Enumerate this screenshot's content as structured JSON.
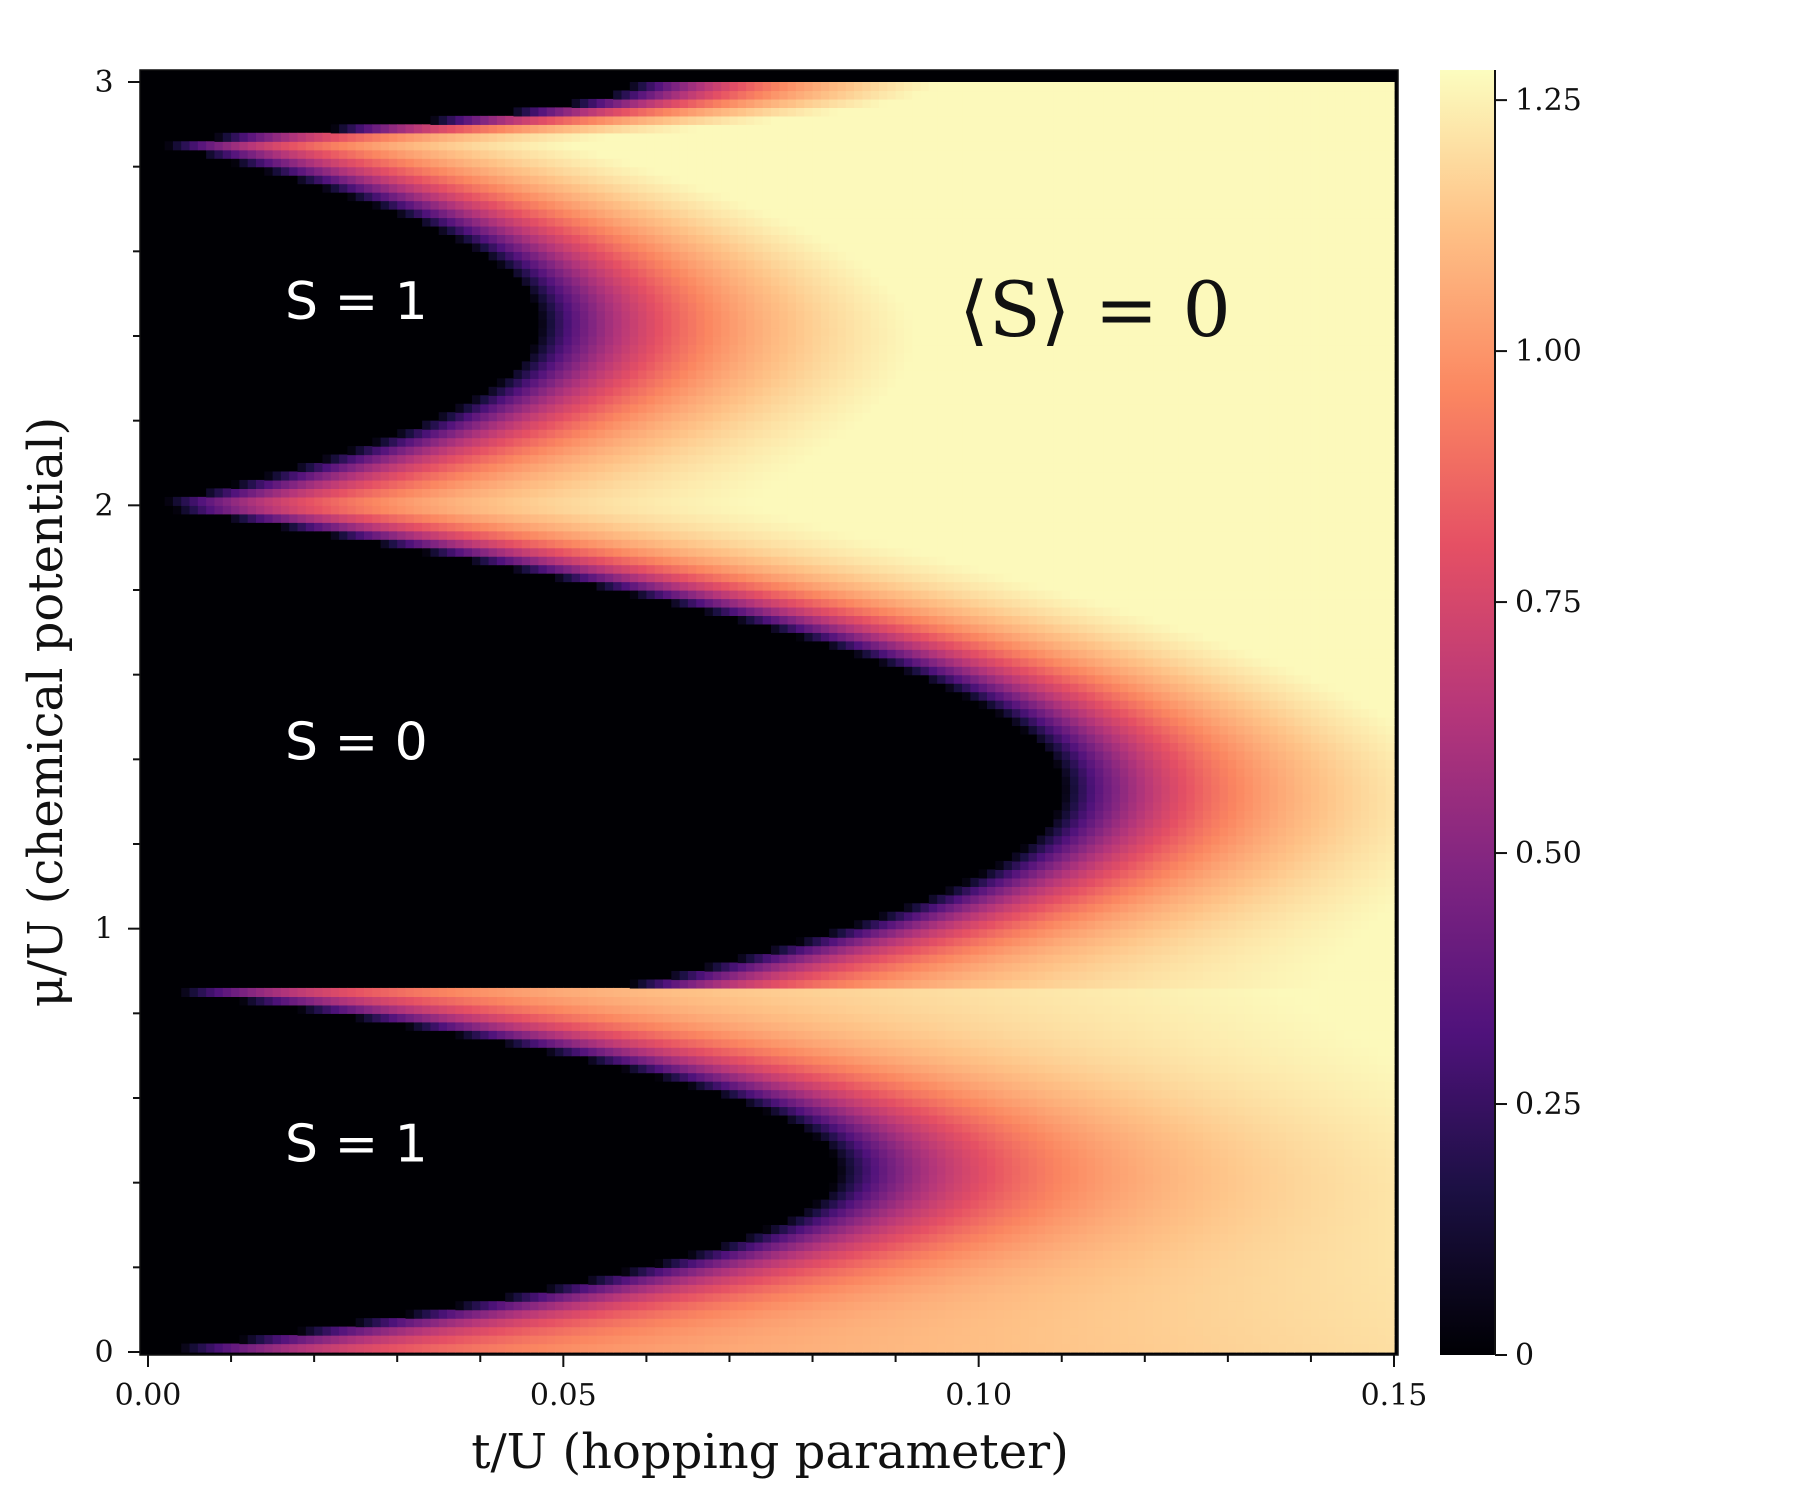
{
  "chart_data": {
    "type": "heatmap",
    "title": "",
    "xlabel": "t/U (hopping parameter)",
    "ylabel": "μ/U (chemical potential)",
    "xlim": [
      0.0,
      0.15
    ],
    "ylim": [
      0,
      3
    ],
    "x_ticks": [
      {
        "value": 0.0,
        "label": "0.00"
      },
      {
        "value": 0.05,
        "label": "0.05"
      },
      {
        "value": 0.1,
        "label": "0.10"
      },
      {
        "value": 0.15,
        "label": "0.15"
      }
    ],
    "y_ticks": [
      {
        "value": 0,
        "label": "0"
      },
      {
        "value": 1,
        "label": "1"
      },
      {
        "value": 2,
        "label": "2"
      },
      {
        "value": 3,
        "label": "3"
      }
    ],
    "colorbar": {
      "colormap": "magma",
      "range": [
        0,
        1.28
      ],
      "ticks": [
        {
          "value": 0,
          "label": "0"
        },
        {
          "value": 0.25,
          "label": "0.25"
        },
        {
          "value": 0.5,
          "label": "0.50"
        },
        {
          "value": 0.75,
          "label": "0.75"
        },
        {
          "value": 1.0,
          "label": "1.00"
        },
        {
          "value": 1.25,
          "label": "1.25"
        }
      ]
    },
    "annotations": [
      {
        "text": "S = 1",
        "t": 0.0165,
        "mu": 2.44
      },
      {
        "text": "S = 0",
        "t": 0.0165,
        "mu": 1.4
      },
      {
        "text": "S = 1",
        "t": 0.0165,
        "mu": 0.45
      },
      {
        "text": "⟨S⟩ = 0",
        "t": 0.114,
        "mu": 2.4
      }
    ],
    "mott_lobes": [
      {
        "mu_min": 0.0,
        "mu_max": 0.86,
        "mu_center": 0.43,
        "t_tip": 0.083
      },
      {
        "mu_min": 0.86,
        "mu_max": 2.0,
        "mu_center": 1.33,
        "t_tip": 0.11
      },
      {
        "mu_min": 2.0,
        "mu_max": 2.86,
        "mu_center": 2.43,
        "t_tip": 0.047
      },
      {
        "mu_min": 2.86,
        "mu_max": 3.0,
        "mu_center": 3.0,
        "t_tip": 0.058
      }
    ],
    "grid_resolution": {
      "nx": 150,
      "ny": 150
    }
  },
  "colors": {
    "background": "#ffffff",
    "axis": "#111111",
    "region_text": "#ffffff"
  }
}
